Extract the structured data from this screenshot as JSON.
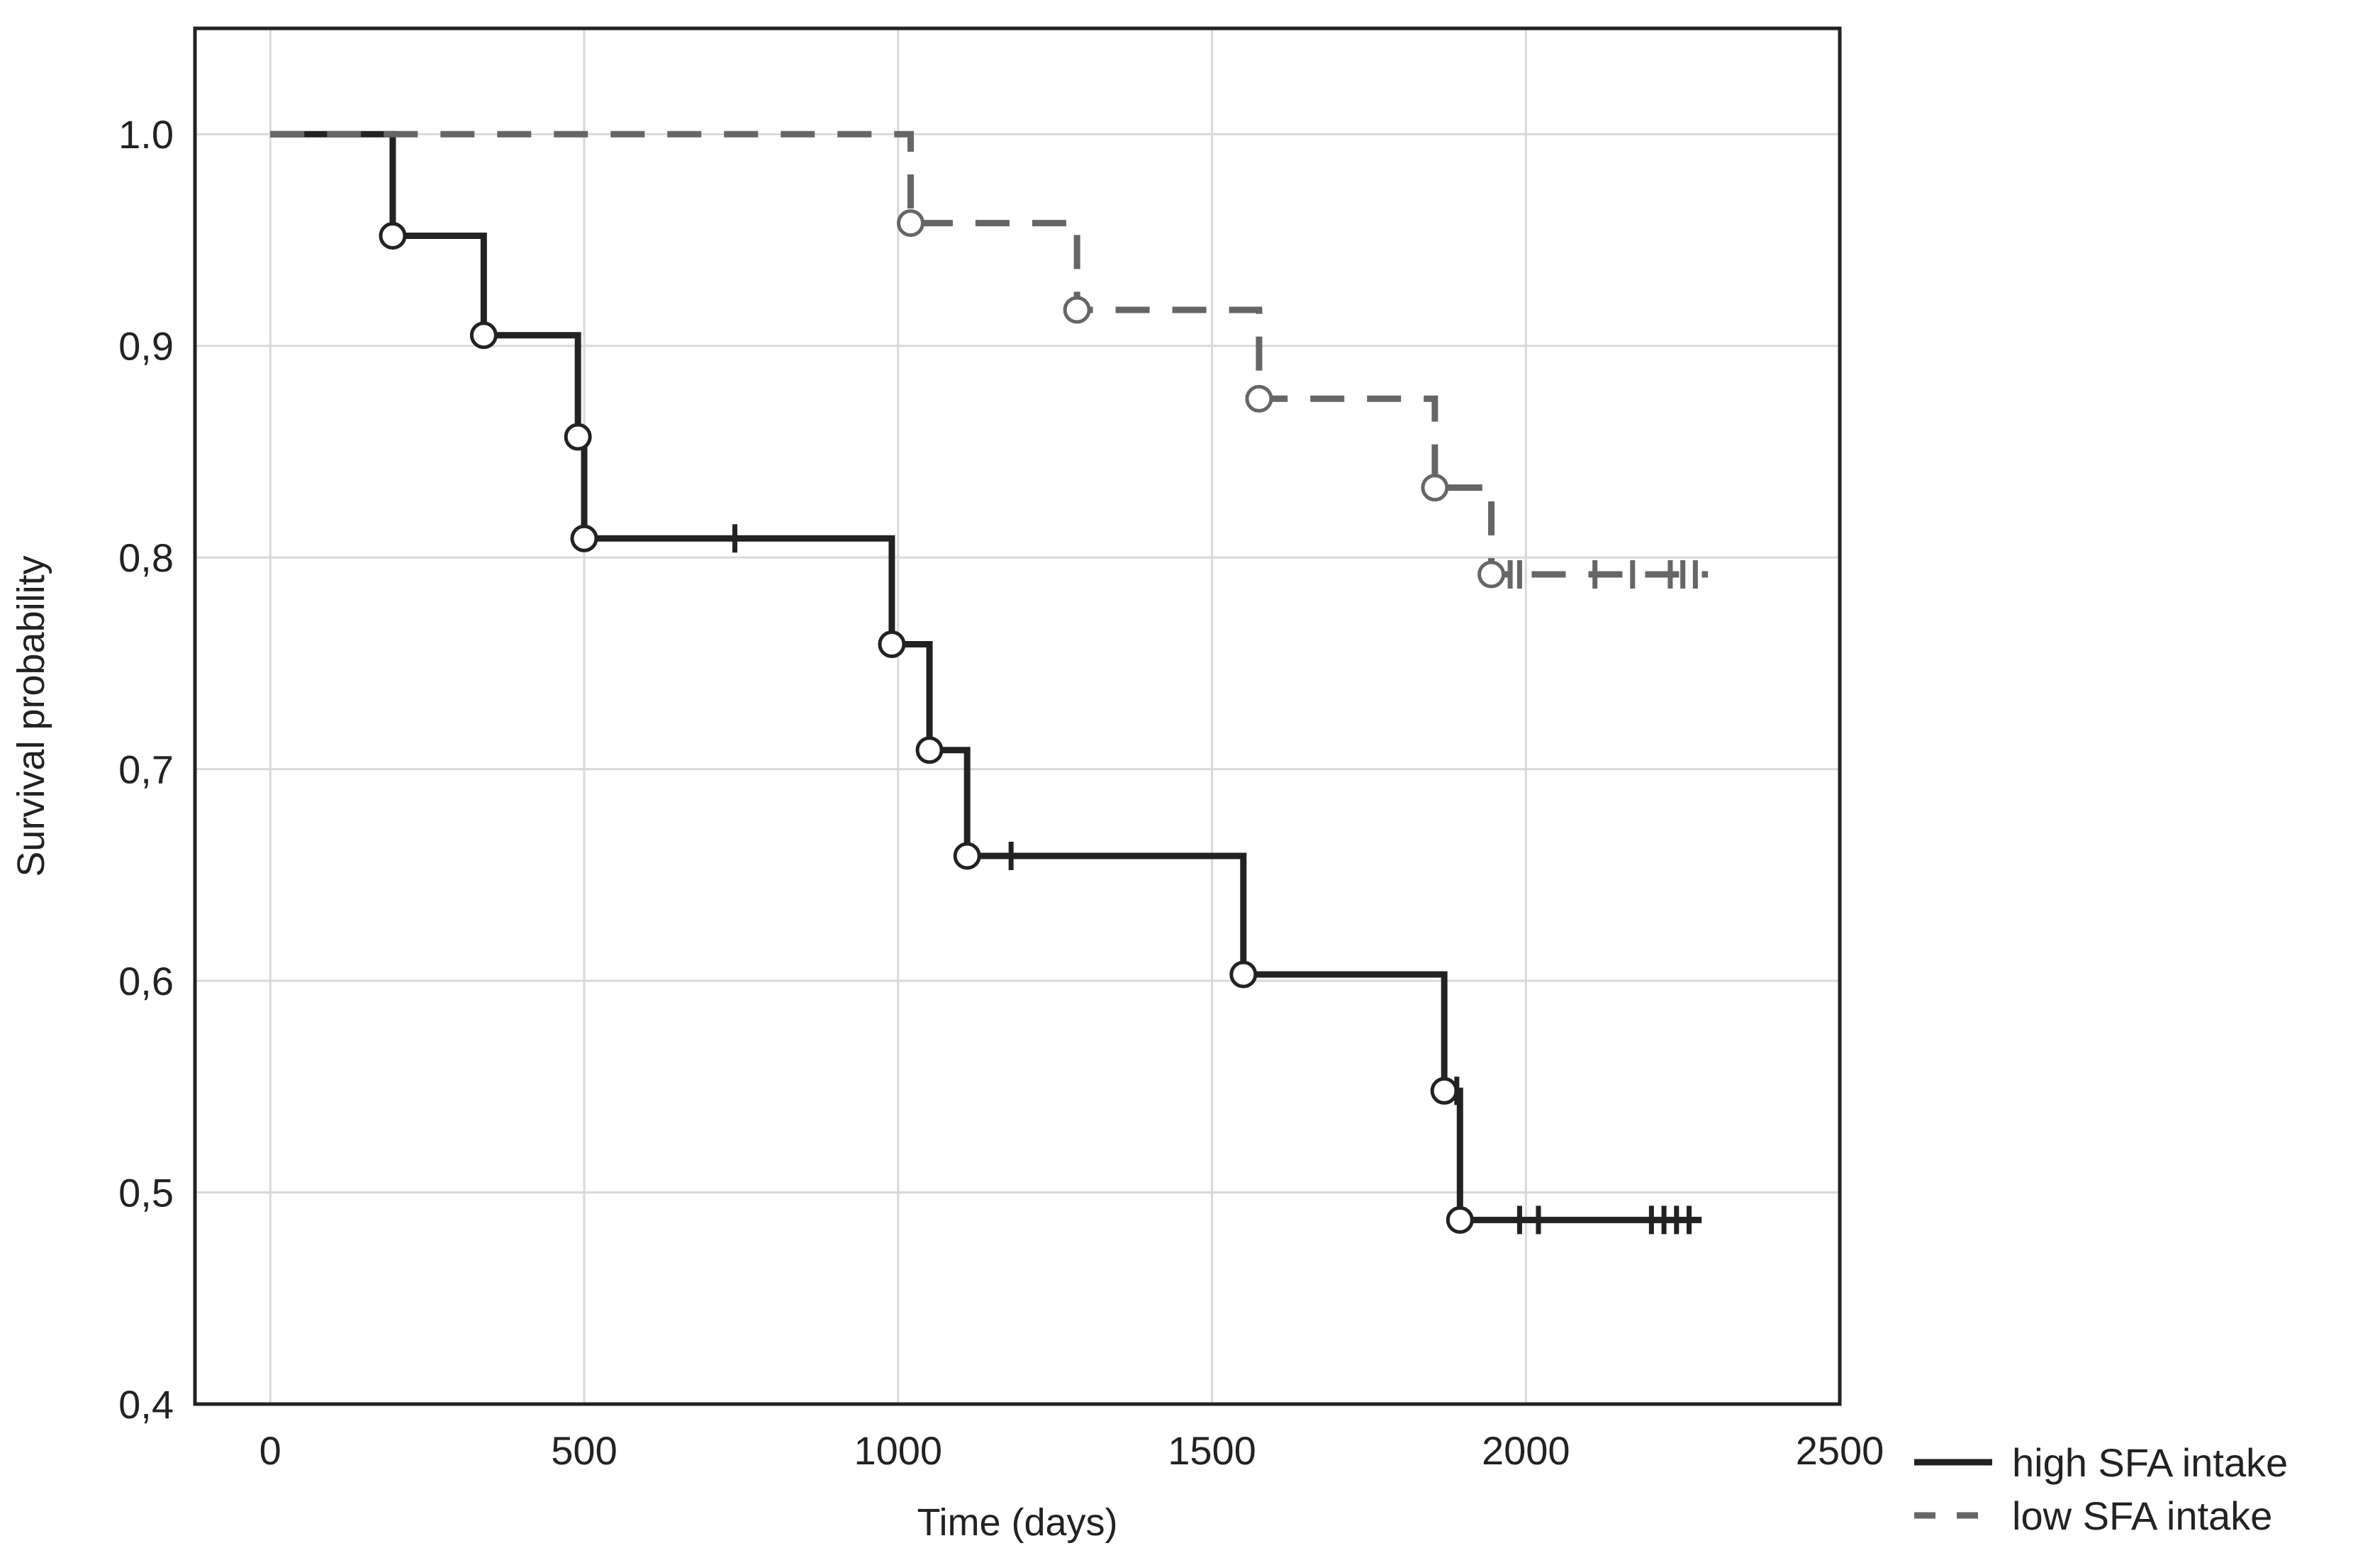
{
  "chart_data": {
    "type": "line",
    "title": "",
    "xlabel": "Time (days)",
    "ylabel": "Survival probability",
    "xlim": [
      -120,
      2500
    ],
    "ylim": [
      0.4,
      1.05
    ],
    "xticks": [
      0,
      500,
      1000,
      1500,
      2000,
      2500
    ],
    "xtick_labels": [
      "0",
      "500",
      "1000",
      "1500",
      "2000",
      "2500"
    ],
    "yticks": [
      0.4,
      0.5,
      0.6,
      0.7,
      0.8,
      0.9,
      1.0
    ],
    "ytick_labels": [
      "0,4",
      "0,5",
      "0,6",
      "0,7",
      "0,8",
      "0,9",
      "1.0"
    ],
    "grid": true,
    "legend_position": "bottom-right outside",
    "series": [
      {
        "name": "high SFA intake",
        "color": "#222222",
        "style": "solid",
        "steps": [
          {
            "x": 0,
            "y": 1.0
          },
          {
            "x": 195,
            "y": 0.952
          },
          {
            "x": 340,
            "y": 0.905
          },
          {
            "x": 490,
            "y": 0.857
          },
          {
            "x": 500,
            "y": 0.809
          },
          {
            "x": 990,
            "y": 0.759
          },
          {
            "x": 1050,
            "y": 0.709
          },
          {
            "x": 1110,
            "y": 0.659
          },
          {
            "x": 1550,
            "y": 0.603
          },
          {
            "x": 1870,
            "y": 0.548
          },
          {
            "x": 1895,
            "y": 0.487
          }
        ],
        "end_x": 2280,
        "events": [
          {
            "x": 195,
            "y": 0.952
          },
          {
            "x": 340,
            "y": 0.905
          },
          {
            "x": 490,
            "y": 0.857
          },
          {
            "x": 500,
            "y": 0.809
          },
          {
            "x": 990,
            "y": 0.759
          },
          {
            "x": 1050,
            "y": 0.709
          },
          {
            "x": 1110,
            "y": 0.659
          },
          {
            "x": 1550,
            "y": 0.603
          },
          {
            "x": 1870,
            "y": 0.548
          },
          {
            "x": 1895,
            "y": 0.487
          }
        ],
        "censored": [
          {
            "x": 740,
            "y": 0.809
          },
          {
            "x": 1180,
            "y": 0.659
          },
          {
            "x": 1890,
            "y": 0.548
          },
          {
            "x": 1990,
            "y": 0.487
          },
          {
            "x": 2020,
            "y": 0.487
          },
          {
            "x": 2200,
            "y": 0.487
          },
          {
            "x": 2220,
            "y": 0.487
          },
          {
            "x": 2240,
            "y": 0.487
          },
          {
            "x": 2260,
            "y": 0.487
          }
        ]
      },
      {
        "name": "low SFA intake",
        "color": "#666666",
        "style": "dashed",
        "steps": [
          {
            "x": 0,
            "y": 1.0
          },
          {
            "x": 1020,
            "y": 0.958
          },
          {
            "x": 1285,
            "y": 0.917
          },
          {
            "x": 1575,
            "y": 0.875
          },
          {
            "x": 1855,
            "y": 0.833
          },
          {
            "x": 1945,
            "y": 0.792
          }
        ],
        "end_x": 2290,
        "events": [
          {
            "x": 1020,
            "y": 0.958
          },
          {
            "x": 1285,
            "y": 0.917
          },
          {
            "x": 1575,
            "y": 0.875
          },
          {
            "x": 1855,
            "y": 0.833
          },
          {
            "x": 1945,
            "y": 0.792
          }
        ],
        "censored": [
          {
            "x": 1975,
            "y": 0.792
          },
          {
            "x": 1990,
            "y": 0.792
          },
          {
            "x": 2110,
            "y": 0.792
          },
          {
            "x": 2170,
            "y": 0.792
          },
          {
            "x": 2230,
            "y": 0.792
          },
          {
            "x": 2250,
            "y": 0.792
          },
          {
            "x": 2270,
            "y": 0.792
          }
        ]
      }
    ]
  }
}
